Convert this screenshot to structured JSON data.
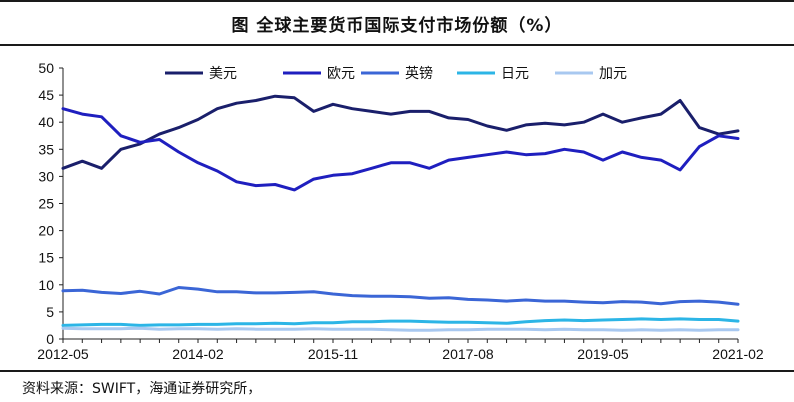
{
  "title": "图 全球主要货币国际支付市场份额（%）",
  "source": "资料来源：SWIFT，海通证券研究所，",
  "chart_data": {
    "type": "line",
    "title": "图 全球主要货币国际支付市场份额（%）",
    "xlabel": "",
    "ylabel": "",
    "ylim": [
      0,
      50
    ],
    "yticks": [
      "0",
      "5",
      "10",
      "15",
      "20",
      "25",
      "30",
      "35",
      "40",
      "45",
      "50"
    ],
    "xtick_labels": [
      "2012-05",
      "2014-02",
      "2015-11",
      "2017-08",
      "2019-05",
      "2021-02"
    ],
    "x": [
      "2012-05",
      "2012-08",
      "2012-11",
      "2013-02",
      "2013-05",
      "2013-08",
      "2013-11",
      "2014-02",
      "2014-05",
      "2014-08",
      "2014-11",
      "2015-02",
      "2015-05",
      "2015-08",
      "2015-11",
      "2016-02",
      "2016-05",
      "2016-08",
      "2016-11",
      "2017-02",
      "2017-05",
      "2017-08",
      "2017-11",
      "2018-02",
      "2018-05",
      "2018-08",
      "2018-11",
      "2019-02",
      "2019-05",
      "2019-08",
      "2019-11",
      "2020-02",
      "2020-05",
      "2020-08",
      "2020-11",
      "2021-02"
    ],
    "grid": false,
    "legend_position": "top-right",
    "series": [
      {
        "name": "美元",
        "color": "#1a1f6b",
        "values": [
          31.5,
          32.8,
          31.5,
          35.0,
          36.0,
          37.8,
          39.0,
          40.5,
          42.5,
          43.5,
          44.0,
          44.8,
          44.5,
          42.0,
          43.3,
          42.5,
          42.0,
          41.5,
          42.0,
          42.0,
          40.8,
          40.5,
          39.3,
          38.5,
          39.5,
          39.8,
          39.5,
          40.0,
          41.5,
          40.0,
          40.8,
          41.5,
          44.0,
          39.0,
          37.8,
          38.4
        ]
      },
      {
        "name": "欧元",
        "color": "#1f1fbf",
        "values": [
          42.5,
          41.5,
          41.0,
          37.5,
          36.3,
          36.8,
          34.5,
          32.5,
          31.0,
          29.0,
          28.3,
          28.5,
          27.5,
          29.5,
          30.2,
          30.5,
          31.5,
          32.5,
          32.5,
          31.5,
          33.0,
          33.5,
          34.0,
          34.5,
          34.0,
          34.2,
          35.0,
          34.5,
          33.0,
          34.5,
          33.5,
          33.0,
          31.2,
          35.5,
          37.5,
          37.0
        ]
      },
      {
        "name": "英镑",
        "color": "#3b66d6",
        "values": [
          8.9,
          9.0,
          8.6,
          8.4,
          8.8,
          8.3,
          9.5,
          9.2,
          8.7,
          8.7,
          8.5,
          8.5,
          8.6,
          8.7,
          8.3,
          8.0,
          7.9,
          7.9,
          7.8,
          7.5,
          7.6,
          7.3,
          7.2,
          7.0,
          7.2,
          7.0,
          7.0,
          6.8,
          6.7,
          6.9,
          6.8,
          6.5,
          6.9,
          7.0,
          6.8,
          6.4
        ]
      },
      {
        "name": "日元",
        "color": "#2cb5e6",
        "values": [
          2.5,
          2.6,
          2.7,
          2.7,
          2.5,
          2.6,
          2.6,
          2.7,
          2.7,
          2.8,
          2.8,
          2.9,
          2.8,
          3.0,
          3.0,
          3.2,
          3.2,
          3.3,
          3.3,
          3.2,
          3.1,
          3.1,
          3.0,
          2.9,
          3.2,
          3.4,
          3.5,
          3.4,
          3.5,
          3.6,
          3.7,
          3.6,
          3.7,
          3.6,
          3.6,
          3.3
        ]
      },
      {
        "name": "加元",
        "color": "#a8c8f0",
        "values": [
          2.0,
          1.9,
          1.9,
          1.9,
          2.0,
          1.8,
          1.9,
          1.9,
          1.8,
          1.9,
          1.8,
          1.8,
          1.8,
          1.9,
          1.8,
          1.8,
          1.8,
          1.7,
          1.6,
          1.6,
          1.7,
          1.7,
          1.8,
          1.8,
          1.8,
          1.7,
          1.8,
          1.7,
          1.7,
          1.6,
          1.7,
          1.6,
          1.7,
          1.6,
          1.7,
          1.7
        ]
      }
    ]
  }
}
